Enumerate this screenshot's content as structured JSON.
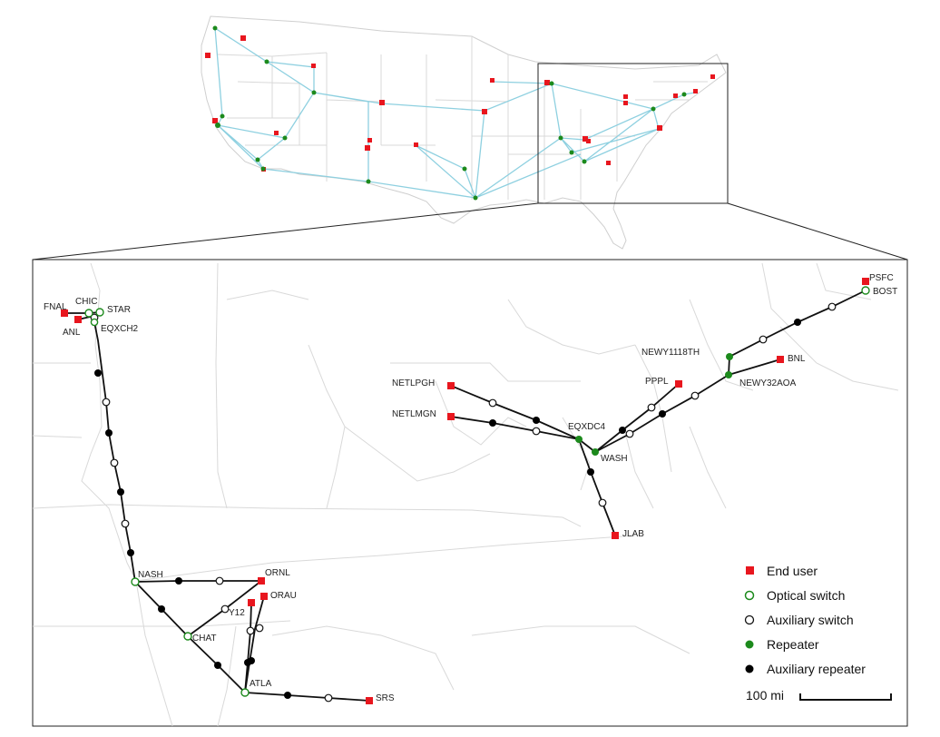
{
  "legend": {
    "end_user": "End user",
    "optical_switch": "Optical switch",
    "auxiliary_switch": "Auxiliary switch",
    "repeater": "Repeater",
    "auxiliary_repeater": "Auxiliary repeater",
    "scale": "100 mi"
  },
  "colors": {
    "end_user": "#e8161e",
    "optical_switch": "#1c8a1c",
    "repeater": "#1c8a1c",
    "overview_link": "#8ed0e0",
    "detail_link": "#111111"
  },
  "nodes": {
    "fnal": "FNAL",
    "chic": "CHIC",
    "star": "STAR",
    "anl": "ANL",
    "eqxch2": "EQXCH2",
    "nash": "NASH",
    "ornl": "ORNL",
    "orau": "ORAU",
    "y12": "Y12",
    "chat": "CHAT",
    "atla": "ATLA",
    "srs": "SRS",
    "netlpgh": "NETLPGH",
    "netlmgn": "NETLMGN",
    "eqxdc4": "EQXDC4",
    "wash": "WASH",
    "jlab": "JLAB",
    "pppl": "PPPL",
    "newy1118th": "NEWY1118TH",
    "newy32aoa": "NEWY32AOA",
    "bnl": "BNL",
    "psfc": "PSFC",
    "bost": "BOST"
  }
}
